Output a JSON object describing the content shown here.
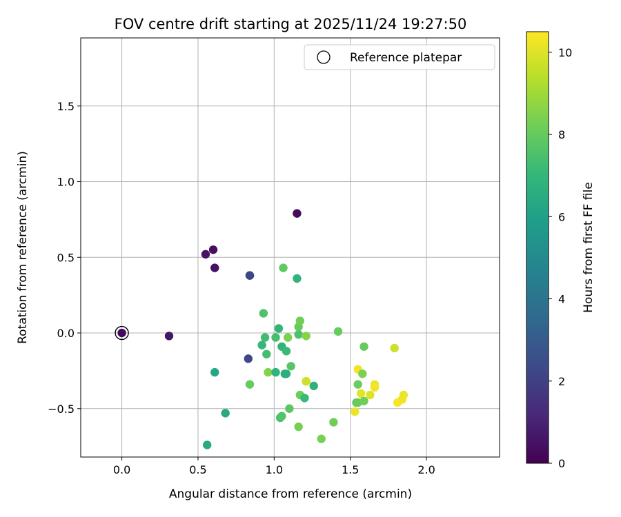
{
  "chart_data": {
    "type": "scatter",
    "title": "FOV centre drift starting at 2025/11/24 19:27:50",
    "xlabel": "Angular distance from reference (arcmin)",
    "ylabel": "Rotation from reference (arcmin)",
    "xlim": [
      -0.27,
      2.48
    ],
    "ylim": [
      -0.82,
      1.95
    ],
    "xticks": [
      0.0,
      0.5,
      1.0,
      1.5,
      2.0
    ],
    "xtick_labels": [
      "0.0",
      "0.5",
      "1.0",
      "1.5",
      "2.0"
    ],
    "yticks": [
      -0.5,
      0.0,
      0.5,
      1.0,
      1.5
    ],
    "ytick_labels": [
      "−0.5",
      "0.0",
      "0.5",
      "1.0",
      "1.5"
    ],
    "grid": true,
    "colormap": "viridis",
    "colorbar": {
      "label": "Hours from first FF file",
      "range": [
        0,
        10.5
      ],
      "ticks": [
        0,
        2,
        4,
        6,
        8,
        10
      ],
      "tick_labels": [
        "0",
        "2",
        "4",
        "6",
        "8",
        "10"
      ]
    },
    "legend": {
      "position": "top-right",
      "entries": [
        "Reference platepar"
      ]
    },
    "reference_point": {
      "x": 0.0,
      "y": 0.0
    },
    "points": [
      {
        "x": 0.0,
        "y": 0.0,
        "h": 0.2
      },
      {
        "x": 0.31,
        "y": -0.02,
        "h": 0.6
      },
      {
        "x": 0.55,
        "y": 0.52,
        "h": 0.5
      },
      {
        "x": 0.6,
        "y": 0.55,
        "h": 0.4
      },
      {
        "x": 0.61,
        "y": 0.43,
        "h": 0.5
      },
      {
        "x": 1.15,
        "y": 0.79,
        "h": 0.3
      },
      {
        "x": 0.84,
        "y": 0.38,
        "h": 2.0
      },
      {
        "x": 0.84,
        "y": 0.38,
        "h": 2.2
      },
      {
        "x": 0.83,
        "y": -0.17,
        "h": 2.3
      },
      {
        "x": 0.61,
        "y": -0.26,
        "h": 6.2
      },
      {
        "x": 0.68,
        "y": -0.53,
        "h": 6.3
      },
      {
        "x": 0.56,
        "y": -0.74,
        "h": 6.4
      },
      {
        "x": 0.84,
        "y": -0.34,
        "h": 8.0
      },
      {
        "x": 0.93,
        "y": 0.13,
        "h": 7.5
      },
      {
        "x": 0.92,
        "y": -0.08,
        "h": 7.0
      },
      {
        "x": 0.94,
        "y": -0.03,
        "h": 7.2
      },
      {
        "x": 0.95,
        "y": -0.14,
        "h": 7.3
      },
      {
        "x": 0.96,
        "y": -0.26,
        "h": 8.5
      },
      {
        "x": 1.01,
        "y": -0.26,
        "h": 6.8
      },
      {
        "x": 1.01,
        "y": -0.03,
        "h": 7.4
      },
      {
        "x": 1.03,
        "y": 0.03,
        "h": 6.9
      },
      {
        "x": 1.04,
        "y": -0.56,
        "h": 7.4
      },
      {
        "x": 1.05,
        "y": -0.55,
        "h": 7.6
      },
      {
        "x": 1.05,
        "y": -0.09,
        "h": 6.8
      },
      {
        "x": 1.06,
        "y": 0.43,
        "h": 7.9
      },
      {
        "x": 1.07,
        "y": -0.27,
        "h": 6.5
      },
      {
        "x": 1.08,
        "y": -0.27,
        "h": 6.6
      },
      {
        "x": 1.08,
        "y": -0.12,
        "h": 7.1
      },
      {
        "x": 1.09,
        "y": -0.03,
        "h": 8.4
      },
      {
        "x": 1.1,
        "y": -0.5,
        "h": 7.8
      },
      {
        "x": 1.11,
        "y": -0.22,
        "h": 7.7
      },
      {
        "x": 1.15,
        "y": 0.36,
        "h": 6.8
      },
      {
        "x": 1.16,
        "y": -0.01,
        "h": 7.5
      },
      {
        "x": 1.16,
        "y": 0.04,
        "h": 8.0
      },
      {
        "x": 1.16,
        "y": -0.62,
        "h": 8.3
      },
      {
        "x": 1.17,
        "y": 0.08,
        "h": 8.2
      },
      {
        "x": 1.17,
        "y": -0.41,
        "h": 8.1
      },
      {
        "x": 1.2,
        "y": -0.43,
        "h": 7.1
      },
      {
        "x": 1.21,
        "y": -0.02,
        "h": 8.6
      },
      {
        "x": 1.21,
        "y": -0.32,
        "h": 9.5
      },
      {
        "x": 1.21,
        "y": -0.32,
        "h": 9.7
      },
      {
        "x": 1.26,
        "y": -0.35,
        "h": 6.7
      },
      {
        "x": 1.31,
        "y": -0.7,
        "h": 8.3
      },
      {
        "x": 1.39,
        "y": -0.59,
        "h": 8.2
      },
      {
        "x": 1.42,
        "y": 0.01,
        "h": 8.0
      },
      {
        "x": 1.53,
        "y": -0.52,
        "h": 10.2
      },
      {
        "x": 1.54,
        "y": -0.46,
        "h": 7.9
      },
      {
        "x": 1.55,
        "y": -0.34,
        "h": 8.1
      },
      {
        "x": 1.55,
        "y": -0.46,
        "h": 8.0
      },
      {
        "x": 1.55,
        "y": -0.24,
        "h": 10.3
      },
      {
        "x": 1.57,
        "y": -0.4,
        "h": 10.1
      },
      {
        "x": 1.58,
        "y": -0.27,
        "h": 8.4
      },
      {
        "x": 1.59,
        "y": -0.45,
        "h": 8.2
      },
      {
        "x": 1.59,
        "y": -0.09,
        "h": 8.0
      },
      {
        "x": 1.63,
        "y": -0.41,
        "h": 10.0
      },
      {
        "x": 1.66,
        "y": -0.34,
        "h": 10.2
      },
      {
        "x": 1.66,
        "y": -0.36,
        "h": 10.3
      },
      {
        "x": 1.79,
        "y": -0.1,
        "h": 9.7
      },
      {
        "x": 1.81,
        "y": -0.46,
        "h": 10.4
      },
      {
        "x": 1.84,
        "y": -0.44,
        "h": 10.3
      },
      {
        "x": 1.85,
        "y": -0.41,
        "h": 10.2
      }
    ]
  }
}
